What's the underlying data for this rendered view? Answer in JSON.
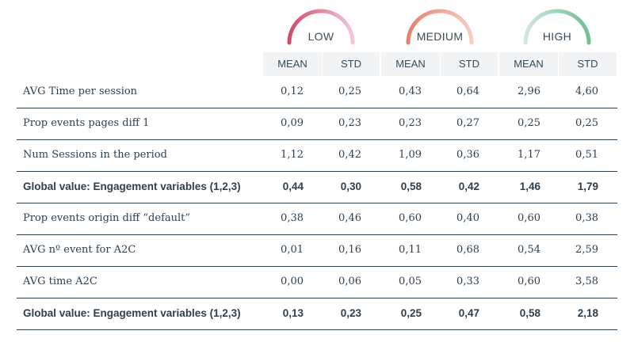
{
  "groups": [
    {
      "label": "LOW",
      "color_start": "#d24a6c",
      "color_end": "#f2c8d3"
    },
    {
      "label": "MEDIUM",
      "color_start": "#e6806d",
      "color_end": "#f7ccc2"
    },
    {
      "label": "HIGH",
      "color_start": "#cde9da",
      "color_end": "#6fbf91"
    }
  ],
  "subheaders": [
    "MEAN",
    "STD",
    "MEAN",
    "STD",
    "MEAN",
    "STD"
  ],
  "rows": [
    {
      "label": "AVG Time per session",
      "bold": false,
      "values": [
        "0,12",
        "0,25",
        "0,43",
        "0,64",
        "2,96",
        "4,60"
      ]
    },
    {
      "label": "Prop events pages diff 1",
      "bold": false,
      "values": [
        "0,09",
        "0,23",
        "0,23",
        "0,27",
        "0,25",
        "0,25"
      ]
    },
    {
      "label": "Num Sessions in the period",
      "bold": false,
      "values": [
        "1,12",
        "0,42",
        "1,09",
        "0,36",
        "1,17",
        "0,51"
      ]
    },
    {
      "label": "Global value: Engagement variables (1,2,3)",
      "bold": true,
      "values": [
        "0,44",
        "0,30",
        "0,58",
        "0,42",
        "1,46",
        "1,79"
      ]
    },
    {
      "label": "Prop events origin diff  “default”",
      "bold": false,
      "values": [
        "0,38",
        "0,46",
        "0,60",
        "0,40",
        "0,60",
        "0,38"
      ]
    },
    {
      "label": "AVG nº event for A2C",
      "bold": false,
      "values": [
        "0,01",
        "0,16",
        "0,11",
        "0,68",
        "0,54",
        "2,59"
      ]
    },
    {
      "label": "AVG time A2C",
      "bold": false,
      "values": [
        "0,00",
        "0,06",
        "0,05",
        "0,33",
        "0,60",
        "3,58"
      ]
    },
    {
      "label": "Global value: Engagement variables (1,2,3)",
      "bold": true,
      "values": [
        "0,13",
        "0,23",
        "0,25",
        "0,47",
        "0,58",
        "2,18"
      ]
    }
  ]
}
